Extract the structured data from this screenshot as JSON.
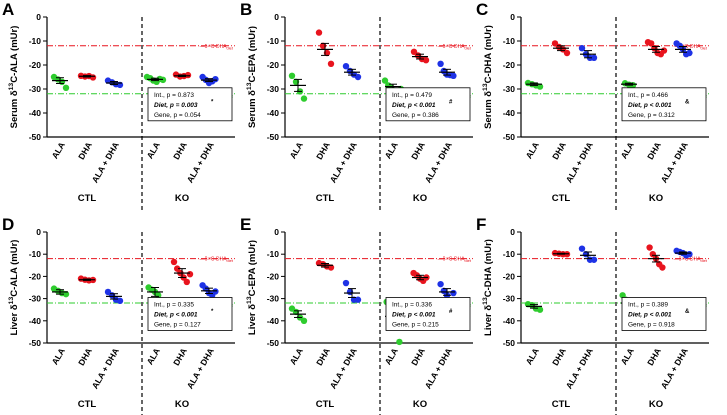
{
  "figure": {
    "x_categories": [
      "ALA",
      "DHA",
      "ALA + DHA"
    ],
    "groups": [
      "CTL",
      "KO"
    ],
    "colors": {
      "ALA": "#2ecc2e",
      "DHA": "#e8141e",
      "ALA + DHA": "#1e32e6",
      "dha_ref": "#e8141e",
      "ala_ref": "#2ecc2e"
    },
    "ref_labels": {
      "dha": "δ¹³C-DHA",
      "ala": "δ¹³C-ALA",
      "subscript": "diet"
    }
  },
  "chart_data": [
    {
      "panel": "A",
      "type": "scatter",
      "ylabel": "Serum δ13C-ALA (mUr)",
      "ylim": [
        -50,
        0
      ],
      "yticks": [
        0,
        -10,
        -20,
        -30,
        -40,
        -50
      ],
      "ref_lines": {
        "dha": -12,
        "ala": -32
      },
      "groups": [
        {
          "name": "CTL",
          "series": [
            {
              "name": "ALA",
              "mean": -26.5,
              "sem": 1.2,
              "points": [
                -25,
                -26,
                -27,
                -29.5
              ]
            },
            {
              "name": "DHA",
              "mean": -24.7,
              "sem": 0.3,
              "points": [
                -24.5,
                -24.8,
                -24.6,
                -25.2
              ]
            },
            {
              "name": "ALA + DHA",
              "mean": -27.5,
              "sem": 0.6,
              "points": [
                -26.5,
                -27.2,
                -28,
                -28.3
              ]
            }
          ]
        },
        {
          "name": "KO",
          "series": [
            {
              "name": "ALA",
              "mean": -26.0,
              "sem": 0.5,
              "points": [
                -25,
                -25.5,
                -26.5,
                -27,
                -25.8,
                -26.2
              ]
            },
            {
              "name": "DHA",
              "mean": -24.5,
              "sem": 0.3,
              "points": [
                -24,
                -24.8,
                -24.6,
                -24.2
              ]
            },
            {
              "name": "ALA + DHA",
              "mean": -26.3,
              "sem": 0.6,
              "points": [
                -25,
                -26.2,
                -27.5,
                -26.8,
                -25.9
              ]
            }
          ]
        }
      ],
      "stats": {
        "int": "Int., p = 0.873",
        "diet": "Diet, p = 0.003",
        "diet_mark": "*",
        "gene": "Gene, p = 0.054"
      }
    },
    {
      "panel": "B",
      "type": "scatter",
      "ylabel": "Serum δ13C-EPA (mUr)",
      "ylim": [
        -50,
        0
      ],
      "yticks": [
        0,
        -10,
        -20,
        -30,
        -40,
        -50
      ],
      "ref_lines": {
        "dha": -12,
        "ala": -32
      },
      "groups": [
        {
          "name": "CTL",
          "series": [
            {
              "name": "ALA",
              "mean": -28.5,
              "sem": 2.5,
              "points": [
                -24.5,
                -27,
                -31,
                -34
              ]
            },
            {
              "name": "DHA",
              "mean": -13.5,
              "sem": 2.5,
              "points": [
                -6.5,
                -12,
                -15,
                -19.5
              ]
            },
            {
              "name": "ALA + DHA",
              "mean": -23.0,
              "sem": 1.2,
              "points": [
                -20.5,
                -22.5,
                -24,
                -25
              ]
            }
          ]
        },
        {
          "name": "KO",
          "series": [
            {
              "name": "ALA",
              "mean": -29.0,
              "sem": 1.0,
              "points": [
                -26.5,
                -28.5,
                -29.5,
                -31,
                -32,
                -30
              ]
            },
            {
              "name": "DHA",
              "mean": -16.5,
              "sem": 1.0,
              "points": [
                -14.5,
                -16,
                -17.5,
                -18
              ]
            },
            {
              "name": "ALA + DHA",
              "mean": -23.0,
              "sem": 1.2,
              "points": [
                -19.5,
                -22.5,
                -24,
                -24.2,
                -24.5
              ]
            }
          ]
        }
      ],
      "stats": {
        "int": "Int., p = 0.479",
        "diet": "Diet, p < 0.001",
        "diet_mark": "#",
        "gene": "Gene, p = 0.386"
      }
    },
    {
      "panel": "C",
      "type": "scatter",
      "ylabel": "Serum δ13C-DHA (mUr)",
      "ylim": [
        -50,
        0
      ],
      "yticks": [
        0,
        -10,
        -20,
        -30,
        -40,
        -50
      ],
      "ref_lines": {
        "dha": -12,
        "ala": -32
      },
      "groups": [
        {
          "name": "CTL",
          "series": [
            {
              "name": "ALA",
              "mean": -28.0,
              "sem": 0.5,
              "points": [
                -27.5,
                -28,
                -28.5,
                -29
              ]
            },
            {
              "name": "DHA",
              "mean": -13.0,
              "sem": 1.0,
              "points": [
                -11,
                -12.5,
                -13.5,
                -15
              ]
            },
            {
              "name": "ALA + DHA",
              "mean": -15.5,
              "sem": 1.5,
              "points": [
                -13,
                -15.5,
                -17,
                -17
              ]
            }
          ]
        },
        {
          "name": "KO",
          "series": [
            {
              "name": "ALA",
              "mean": -28.0,
              "sem": 0.4,
              "points": [
                -27.6,
                -28.2,
                -28.4
              ]
            },
            {
              "name": "DHA",
              "mean": -13.5,
              "sem": 1.2,
              "points": [
                -10.5,
                -11,
                -13,
                -15,
                -15.5,
                -14
              ]
            },
            {
              "name": "ALA + DHA",
              "mean": -13.5,
              "sem": 1.2,
              "points": [
                -11,
                -12,
                -13.5,
                -15.5,
                -15
              ]
            }
          ]
        }
      ],
      "stats": {
        "int": "Int., p = 0.466",
        "diet": "Diet, p < 0.001",
        "diet_mark": "&",
        "gene": "Gene, p = 0.312"
      }
    },
    {
      "panel": "D",
      "type": "scatter",
      "ylabel": "Liver δ13C-ALA (mUr)",
      "ylim": [
        -50,
        0
      ],
      "yticks": [
        0,
        -10,
        -20,
        -30,
        -40,
        -50
      ],
      "ref_lines": {
        "dha": -12,
        "ala": -32
      },
      "groups": [
        {
          "name": "CTL",
          "series": [
            {
              "name": "ALA",
              "mean": -27.0,
              "sem": 1.0,
              "points": [
                -25.5,
                -26.5,
                -27.5,
                -28
              ]
            },
            {
              "name": "DHA",
              "mean": -21.5,
              "sem": 0.3,
              "points": [
                -21,
                -21.5,
                -21.8,
                -21.6
              ]
            },
            {
              "name": "ALA + DHA",
              "mean": -29.0,
              "sem": 1.2,
              "points": [
                -27,
                -28.5,
                -30.5,
                -31
              ]
            }
          ]
        },
        {
          "name": "KO",
          "series": [
            {
              "name": "ALA",
              "mean": -27.0,
              "sem": 2.0,
              "points": [
                -25,
                -26,
                -27,
                -28.5,
                -36.5
              ]
            },
            {
              "name": "DHA",
              "mean": -18.5,
              "sem": 2.0,
              "points": [
                -13.5,
                -16.5,
                -18.5,
                -20.5,
                -22.5,
                -19
              ]
            },
            {
              "name": "ALA + DHA",
              "mean": -26.5,
              "sem": 1.2,
              "points": [
                -24,
                -25.5,
                -27.5,
                -28.5,
                -26.8
              ]
            }
          ]
        }
      ],
      "stats": {
        "int": "Int., p = 0.335",
        "diet": "Diet, p < 0.001",
        "diet_mark": "*",
        "gene": "Gene, p = 0.127"
      }
    },
    {
      "panel": "E",
      "type": "scatter",
      "ylabel": "Liver δ13C-EPA (mUr)",
      "ylim": [
        -50,
        0
      ],
      "yticks": [
        0,
        -10,
        -20,
        -30,
        -40,
        -50
      ],
      "ref_lines": {
        "dha": -12,
        "ala": -32
      },
      "groups": [
        {
          "name": "CTL",
          "series": [
            {
              "name": "ALA",
              "mean": -37.0,
              "sem": 1.5,
              "points": [
                -34.5,
                -36,
                -38.5,
                -40
              ]
            },
            {
              "name": "DHA",
              "mean": -15.0,
              "sem": 0.8,
              "points": [
                -14,
                -14.5,
                -15.5,
                -16
              ]
            },
            {
              "name": "ALA + DHA",
              "mean": -27.5,
              "sem": 2.0,
              "points": [
                -23,
                -27,
                -30.5,
                -30.5
              ]
            }
          ]
        },
        {
          "name": "KO",
          "series": [
            {
              "name": "ALA",
              "mean": -38.0,
              "sem": 3.0,
              "points": [
                -31.5,
                -32,
                -38.5,
                -41.5,
                -49.5
              ]
            },
            {
              "name": "DHA",
              "mean": -20.5,
              "sem": 1.0,
              "points": [
                -18.5,
                -19.5,
                -21,
                -22,
                -20.5
              ]
            },
            {
              "name": "ALA + DHA",
              "mean": -27.0,
              "sem": 1.5,
              "points": [
                -23.5,
                -26.5,
                -28.5,
                -32,
                -27.5
              ]
            }
          ]
        }
      ],
      "stats": {
        "int": "Int., p = 0.336",
        "diet": "Diet, p < 0.001",
        "diet_mark": "#",
        "gene": "Gene, p = 0.215"
      }
    },
    {
      "panel": "F",
      "type": "scatter",
      "ylabel": "Liver δ13C-DHA (mUr)",
      "ylim": [
        -50,
        0
      ],
      "yticks": [
        0,
        -10,
        -20,
        -30,
        -40,
        -50
      ],
      "ref_lines": {
        "dha": -12,
        "ala": -32
      },
      "groups": [
        {
          "name": "CTL",
          "series": [
            {
              "name": "ALA",
              "mean": -33.5,
              "sem": 0.8,
              "points": [
                -32.5,
                -33,
                -34.5,
                -35
              ]
            },
            {
              "name": "DHA",
              "mean": -9.8,
              "sem": 0.2,
              "points": [
                -9.5,
                -9.8,
                -10,
                -10
              ]
            },
            {
              "name": "ALA + DHA",
              "mean": -10.5,
              "sem": 1.5,
              "points": [
                -7.5,
                -10,
                -12.5,
                -12.5
              ]
            }
          ]
        },
        {
          "name": "KO",
          "series": [
            {
              "name": "ALA",
              "mean": -32.0,
              "sem": 2.0,
              "points": [
                -28.5,
                -30.5,
                -33,
                -36,
                -38
              ]
            },
            {
              "name": "DHA",
              "mean": -12.0,
              "sem": 1.5,
              "points": [
                -7,
                -10,
                -12,
                -14.5,
                -16
              ]
            },
            {
              "name": "ALA + DHA",
              "mean": -9.5,
              "sem": 0.5,
              "points": [
                -8.5,
                -9,
                -9.5,
                -10.5,
                -10
              ]
            }
          ]
        }
      ],
      "stats": {
        "int": "Int., p = 0.389",
        "diet": "Diet, p < 0.001",
        "diet_mark": "&",
        "gene": "Gene, p = 0.918"
      }
    }
  ]
}
